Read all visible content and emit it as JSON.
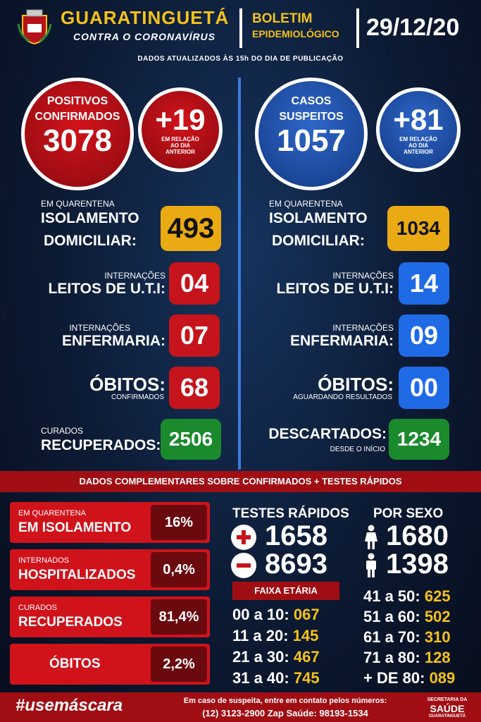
{
  "header": {
    "city": "GUARATINGUETÁ",
    "subtitle": "CONTRA O CORONAVÍRUS",
    "bulletin_line1": "BOLETIM",
    "bulletin_line2": "EPIDEMIOLÓGICO",
    "date": "29/12/20",
    "updated_note": "DADOS ATUALIZADOS ÀS 15h DO DIA DE PUBLICAÇÃO"
  },
  "confirmed": {
    "label1": "POSITIVOS",
    "label2": "CONFIRMADOS",
    "value": "3078",
    "delta": "+19",
    "delta_note1": "EM RELAÇÃO",
    "delta_note2": "AO DIA",
    "delta_note3": "ANTERIOR",
    "isolation_small": "EM QUARENTENA",
    "isolation_l1": "ISOLAMENTO",
    "isolation_l2": "DOMICILIAR:",
    "isolation_value": "493",
    "uti_small": "INTERNAÇÕES",
    "uti_label": "LEITOS DE U.T.I:",
    "uti_value": "04",
    "ward_small": "INTERNAÇÕES",
    "ward_label": "ENFERMARIA:",
    "ward_value": "07",
    "deaths_label": "ÓBITOS:",
    "deaths_small": "CONFIRMADOS",
    "deaths_value": "68",
    "cured_small": "CURADOS",
    "cured_label": "RECUPERADOS:",
    "cured_value": "2506"
  },
  "suspected": {
    "label1": "CASOS",
    "label2": "SUSPEITOS",
    "value": "1057",
    "delta": "+81",
    "delta_note1": "EM RELAÇÃO",
    "delta_note2": "AO DIA",
    "delta_note3": "ANTERIOR",
    "isolation_small": "EM QUARENTENA",
    "isolation_l1": "ISOLAMENTO",
    "isolation_l2": "DOMICILIAR:",
    "isolation_value": "1034",
    "uti_small": "INTERNAÇÕES",
    "uti_label": "LEITOS DE U.T.I:",
    "uti_value": "14",
    "ward_small": "INTERNAÇÕES",
    "ward_label": "ENFERMARIA:",
    "ward_value": "09",
    "deaths_label": "ÓBITOS:",
    "deaths_small": "AGUARDANDO RESULTADOS",
    "deaths_value": "00",
    "discarded_label": "DESCARTADOS:",
    "discarded_small": "DESDE O INÍCIO",
    "discarded_value": "1234"
  },
  "band_title": "DADOS COMPLEMENTARES SOBRE CONFIRMADOS + TESTES RÁPIDOS",
  "percentages": [
    {
      "small": "EM QUARENTENA",
      "large": "EM ISOLAMENTO",
      "value": "16%"
    },
    {
      "small": "INTERNADOS",
      "large": "HOSPITALIZADOS",
      "value": "0,4%"
    },
    {
      "small": "CURADOS",
      "large": "RECUPERADOS",
      "value": "81,4%"
    },
    {
      "small": "",
      "large": "ÓBITOS",
      "value": "2,2%"
    }
  ],
  "rapid_tests": {
    "title": "TESTES RÁPIDOS",
    "positive": "1658",
    "negative": "8693"
  },
  "by_sex": {
    "title": "POR SEXO",
    "female": "1680",
    "male": "1398"
  },
  "age": {
    "title": "FAIXA ETÁRIA",
    "left": [
      {
        "range": "00 a 10:",
        "value": "067"
      },
      {
        "range": "11 a 20:",
        "value": "145"
      },
      {
        "range": "21 a 30:",
        "value": "467"
      },
      {
        "range": "31 a 40:",
        "value": "745"
      }
    ],
    "right": [
      {
        "range": "41 a 50:",
        "value": "625"
      },
      {
        "range": "51 a 60:",
        "value": "502"
      },
      {
        "range": "61 a 70:",
        "value": "310"
      },
      {
        "range": "71 a 80:",
        "value": "128"
      },
      {
        "range": "+ DE 80:",
        "value": "089"
      }
    ]
  },
  "footer": {
    "hashtag": "#usemáscara",
    "contact_line1": "Em caso de suspeita, entre em contato pelos números:",
    "contact_line2": "(12) 3123-2900 Zap Saúde: 98193-1534",
    "dept1": "SECRETARIA DA",
    "dept2": "SAÚDE",
    "dept3": "GUARATINGUETÁ"
  },
  "colors": {
    "accent_yellow": "#f5c21b",
    "red": "#c5141b",
    "blue": "#1f6be6",
    "green": "#1a8a2d",
    "background": "#0c1a33"
  }
}
